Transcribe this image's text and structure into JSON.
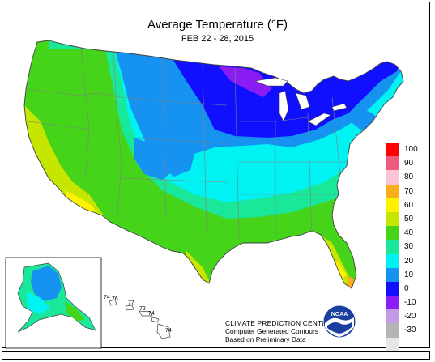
{
  "map": {
    "title": "Average Temperature (°F)",
    "subtitle": "FEB 22 - 28, 2015"
  },
  "legend": {
    "items": [
      {
        "label": "100",
        "color": "#ff0000"
      },
      {
        "label": "90",
        "color": "#ee5b7f"
      },
      {
        "label": "80",
        "color": "#fcc4d4"
      },
      {
        "label": "70",
        "color": "#fbae1c"
      },
      {
        "label": "60",
        "color": "#fef200"
      },
      {
        "label": "50",
        "color": "#c6e600"
      },
      {
        "label": "40",
        "color": "#45d41a"
      },
      {
        "label": "30",
        "color": "#19e89a"
      },
      {
        "label": "20",
        "color": "#00f2f2"
      },
      {
        "label": "10",
        "color": "#1693f0"
      },
      {
        "label": "0",
        "color": "#1010ff"
      },
      {
        "label": "-10",
        "color": "#8a1cf4"
      },
      {
        "label": "-20",
        "color": "#c29ae8"
      },
      {
        "label": "-30",
        "color": "#b4b4b4"
      },
      {
        "label": "",
        "color": "#e6e6e6"
      }
    ]
  },
  "hawaii": {
    "labels": [
      "74",
      "76",
      "77",
      "72",
      "74",
      "74"
    ]
  },
  "credits": {
    "line1": "CLIMATE PREDICTION CENTER, NOAA",
    "line2": "Computer Generated Contours",
    "line3": "Based on Preliminary Data"
  },
  "logo": {
    "text": "NOAA"
  }
}
